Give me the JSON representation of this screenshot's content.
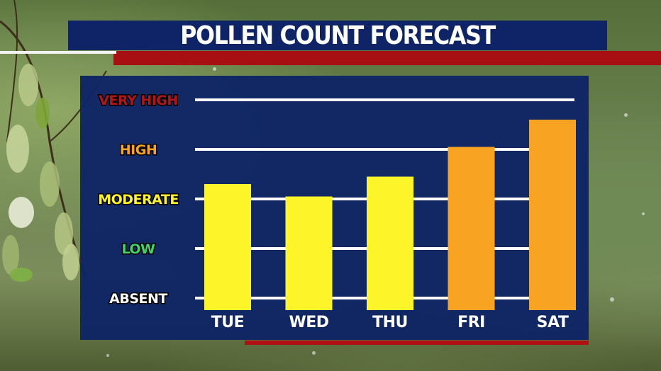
{
  "title": "POLLEN COUNT FORECAST",
  "chart_data": {
    "type": "bar",
    "title": "POLLEN COUNT FORECAST",
    "categories": [
      "TUE",
      "WED",
      "THU",
      "FRI",
      "SAT"
    ],
    "values": [
      2.3,
      2.05,
      2.45,
      3.05,
      3.6
    ],
    "bar_colors": [
      "#fdf52a",
      "#fdf52a",
      "#fdf52a",
      "#f8a322",
      "#f8a322"
    ],
    "y_levels": [
      {
        "label": "ABSENT",
        "value": 0,
        "color": "#ffffff"
      },
      {
        "label": "LOW",
        "value": 1,
        "color": "#3fd36b"
      },
      {
        "label": "MODERATE",
        "value": 2,
        "color": "#fdf52a"
      },
      {
        "label": "HIGH",
        "value": 3,
        "color": "#f8a322"
      },
      {
        "label": "VERY HIGH",
        "value": 4,
        "color": "#b5141a"
      }
    ],
    "ylim": [
      0,
      4
    ],
    "grid": true,
    "xlabel": "",
    "ylabel": ""
  },
  "colors": {
    "panel": "#0e2466",
    "accent_red": "#a80f12",
    "gridline": "#ffffff"
  }
}
